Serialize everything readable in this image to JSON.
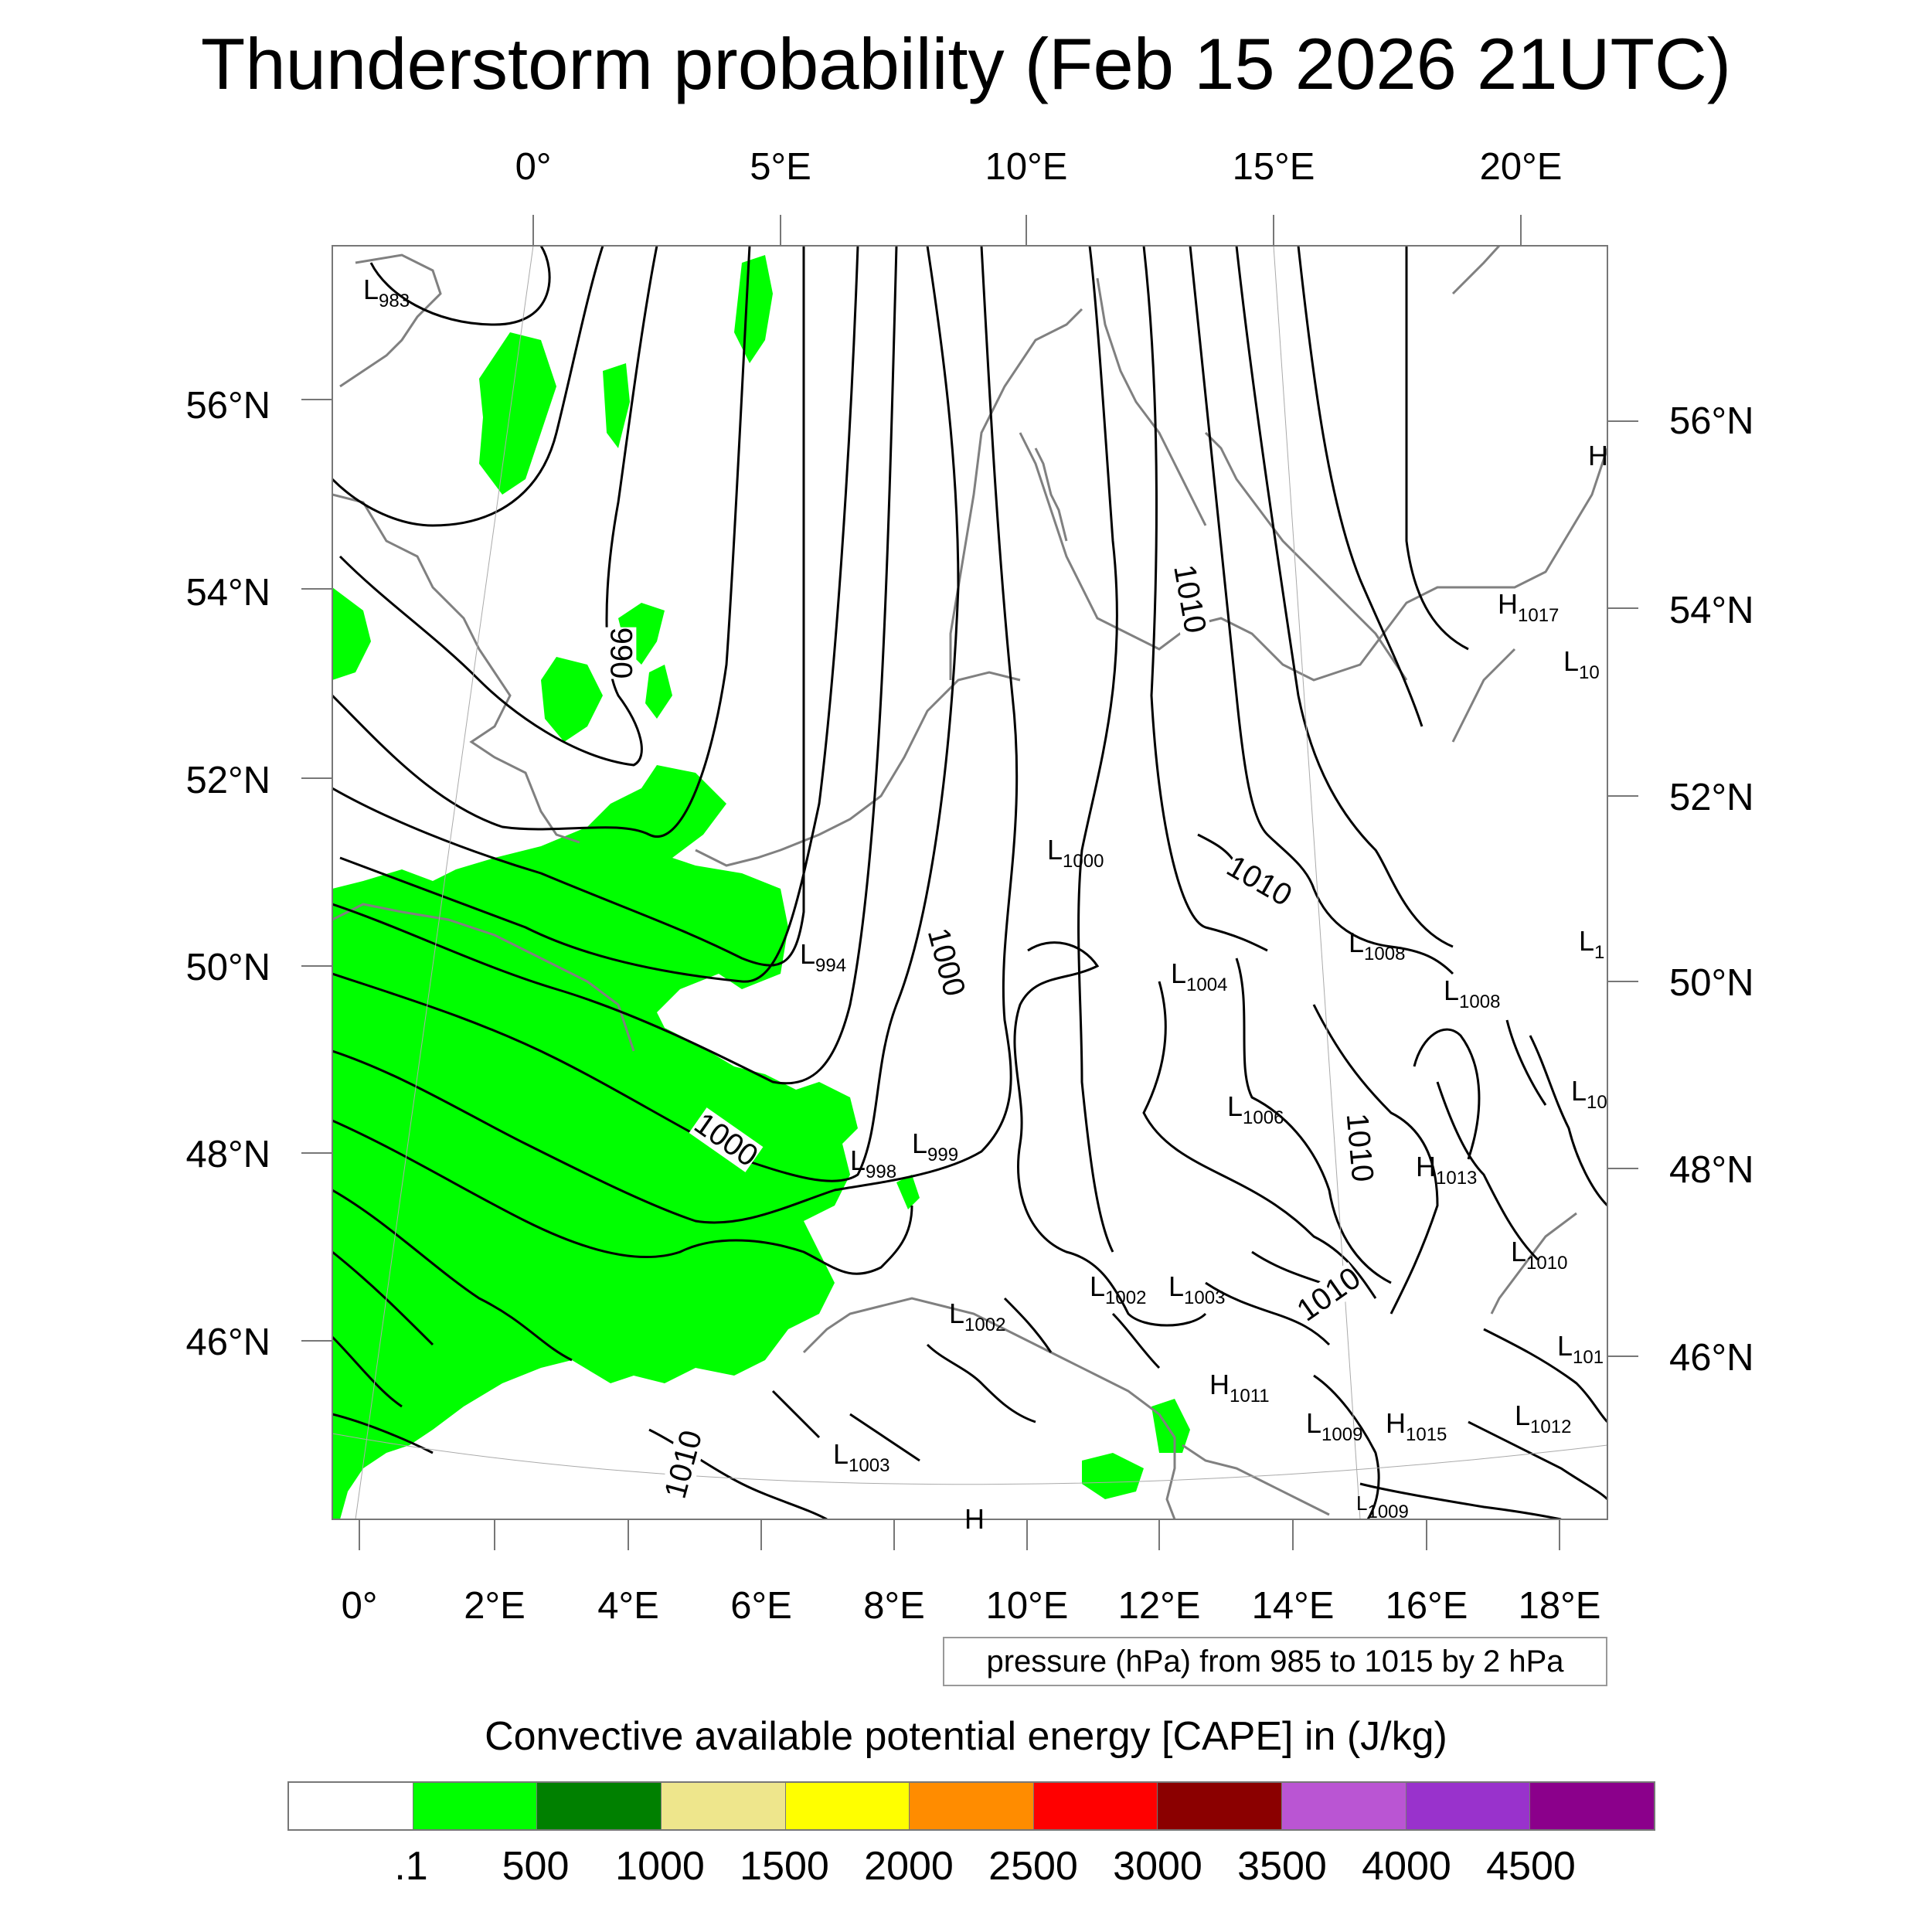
{
  "title": "Thunderstorm probability (Feb 15 2026 21UTC)",
  "top_lon_labels": [
    "0°",
    "5°E",
    "10°E",
    "15°E",
    "20°E"
  ],
  "bottom_lon_labels": [
    "0°",
    "2°E",
    "4°E",
    "6°E",
    "8°E",
    "10°E",
    "12°E",
    "14°E",
    "16°E",
    "18°E"
  ],
  "left_lat_labels": [
    "56°N",
    "54°N",
    "52°N",
    "50°N",
    "48°N",
    "46°N"
  ],
  "right_lat_labels": [
    "56°N",
    "54°N",
    "52°N",
    "50°N",
    "48°N",
    "46°N"
  ],
  "isobar_labels": [
    "990",
    "1000",
    "1000",
    "1010",
    "1010",
    "1010",
    "1010",
    "1010"
  ],
  "pressure_centers": [
    {
      "letter": "L",
      "value": "983"
    },
    {
      "letter": "L",
      "value": "1000"
    },
    {
      "letter": "L",
      "value": "994"
    },
    {
      "letter": "L",
      "value": "1004"
    },
    {
      "letter": "L",
      "value": "1008"
    },
    {
      "letter": "L",
      "value": "1008"
    },
    {
      "letter": "L",
      "value": "1006"
    },
    {
      "letter": "L",
      "value": "998"
    },
    {
      "letter": "L",
      "value": "999"
    },
    {
      "letter": "H",
      "value": "1013"
    },
    {
      "letter": "L",
      "value": "1010"
    },
    {
      "letter": "L",
      "value": "1002"
    },
    {
      "letter": "L",
      "value": "1003"
    },
    {
      "letter": "L",
      "value": "1002"
    },
    {
      "letter": "H",
      "value": "1011"
    },
    {
      "letter": "L",
      "value": "1009"
    },
    {
      "letter": "H",
      "value": "1015"
    },
    {
      "letter": "L",
      "value": "1012"
    },
    {
      "letter": "L",
      "value": "1003"
    },
    {
      "letter": "L",
      "value": "1009"
    },
    {
      "letter": "H",
      "value": "1017"
    },
    {
      "letter": "L",
      "value": "10"
    },
    {
      "letter": "L",
      "value": "1"
    },
    {
      "letter": "L",
      "value": "10"
    },
    {
      "letter": "L",
      "value": "101"
    },
    {
      "letter": "H",
      "value": ""
    },
    {
      "letter": "H",
      "value": ""
    }
  ],
  "pressure_note": "pressure (hPa) from 985 to 1015 by 2 hPa",
  "colorbar": {
    "title": "Convective available potential energy [CAPE] in (J/kg)",
    "colors": [
      "#ffffff",
      "#00ff00",
      "#008000",
      "#eee68c",
      "#ffff00",
      "#ff8c00",
      "#ff0000",
      "#8b0000",
      "#ba55d3",
      "#9932cc",
      "#8b008b"
    ],
    "labels": [
      ".1",
      "500",
      "1000",
      "1500",
      "2000",
      "2500",
      "3000",
      "3500",
      "4000",
      "4500"
    ]
  },
  "cape_color": "#00ff00"
}
